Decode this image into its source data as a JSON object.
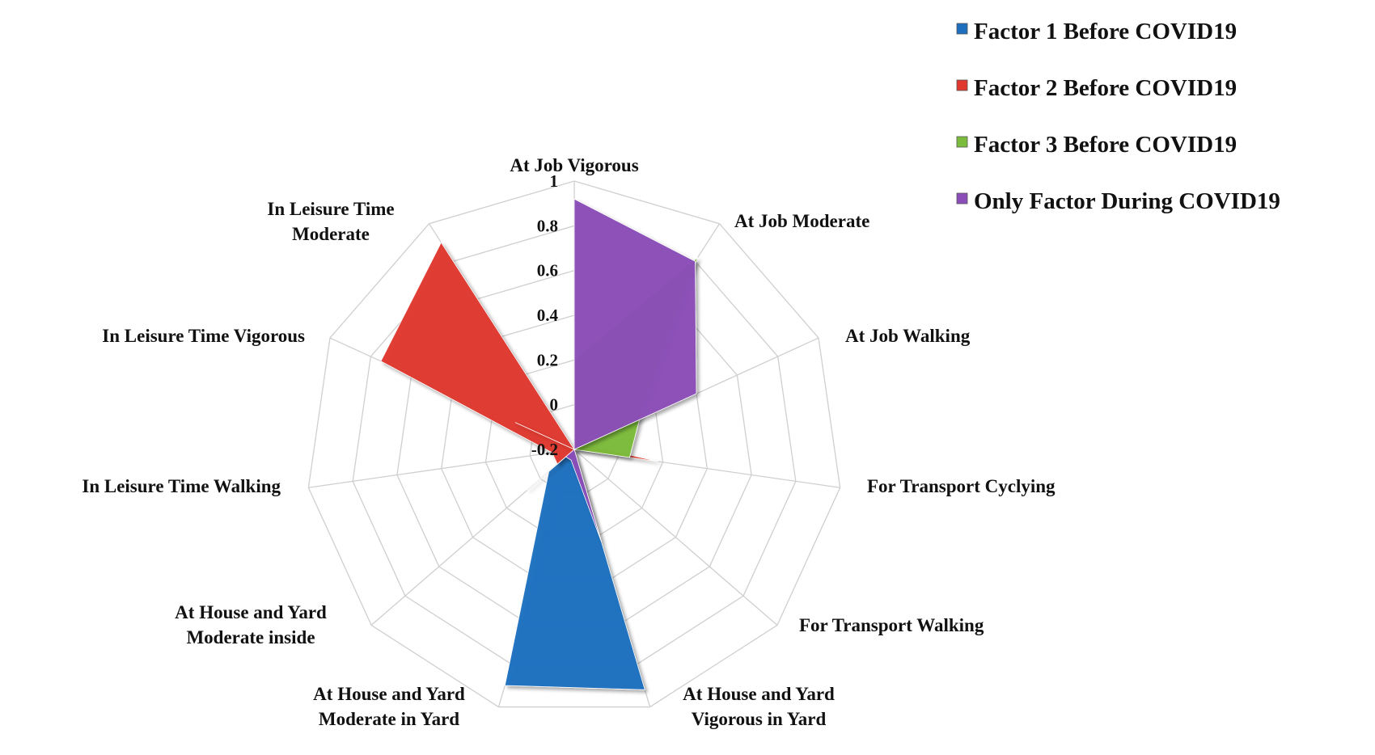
{
  "chart_data": {
    "type": "radar",
    "axes": [
      "At Job Vigorous",
      "At Job Moderate",
      "At Job Walking",
      "For Transport Cyclying",
      "For Transport Walking",
      "At House and Yard\nVigorous in Yard",
      "At House and Yard\nModerate in Yard",
      "At House and Yard\nModerate inside",
      "In Leisure Time Walking",
      "In Leisure Time Vigorous",
      "In Leisure Time\nModerate"
    ],
    "rlim": [
      -0.2,
      1
    ],
    "ticks": [
      "-0.2",
      "0",
      "0.2",
      "0.4",
      "0.6",
      "0.8",
      "1"
    ],
    "tick_values": [
      -0.2,
      0,
      0.2,
      0.4,
      0.6,
      0.8,
      1
    ],
    "grid": true,
    "legend_position": "top-right",
    "series": [
      {
        "name": "Factor 1 Before COVID19",
        "color": "#1f6fbf",
        "values": [
          -0.2,
          -0.2,
          -0.2,
          -0.15,
          -0.2,
          0.92,
          0.9,
          -0.05,
          -0.2,
          -0.2,
          -0.2
        ]
      },
      {
        "name": "Factor 2 Before COVID19",
        "color": "#e0382f",
        "values": [
          -0.2,
          -0.15,
          -0.15,
          0.18,
          -0.2,
          -0.2,
          -0.2,
          -0.1,
          -0.1,
          0.75,
          0.9
        ]
      },
      {
        "name": "Factor 3 Before COVID19",
        "color": "#7cbc3c",
        "values": [
          0.2,
          0.82,
          0.12,
          0.05,
          -0.2,
          -0.2,
          -0.2,
          0.08,
          -0.2,
          -0.2,
          -0.2
        ]
      },
      {
        "name": "Only Factor During  COVID19",
        "color": "#8b4db8",
        "values": [
          0.92,
          0.8,
          0.4,
          -0.2,
          -0.2,
          0.23,
          -0.15,
          -0.15,
          -0.2,
          0.09,
          -0.2
        ]
      }
    ]
  }
}
